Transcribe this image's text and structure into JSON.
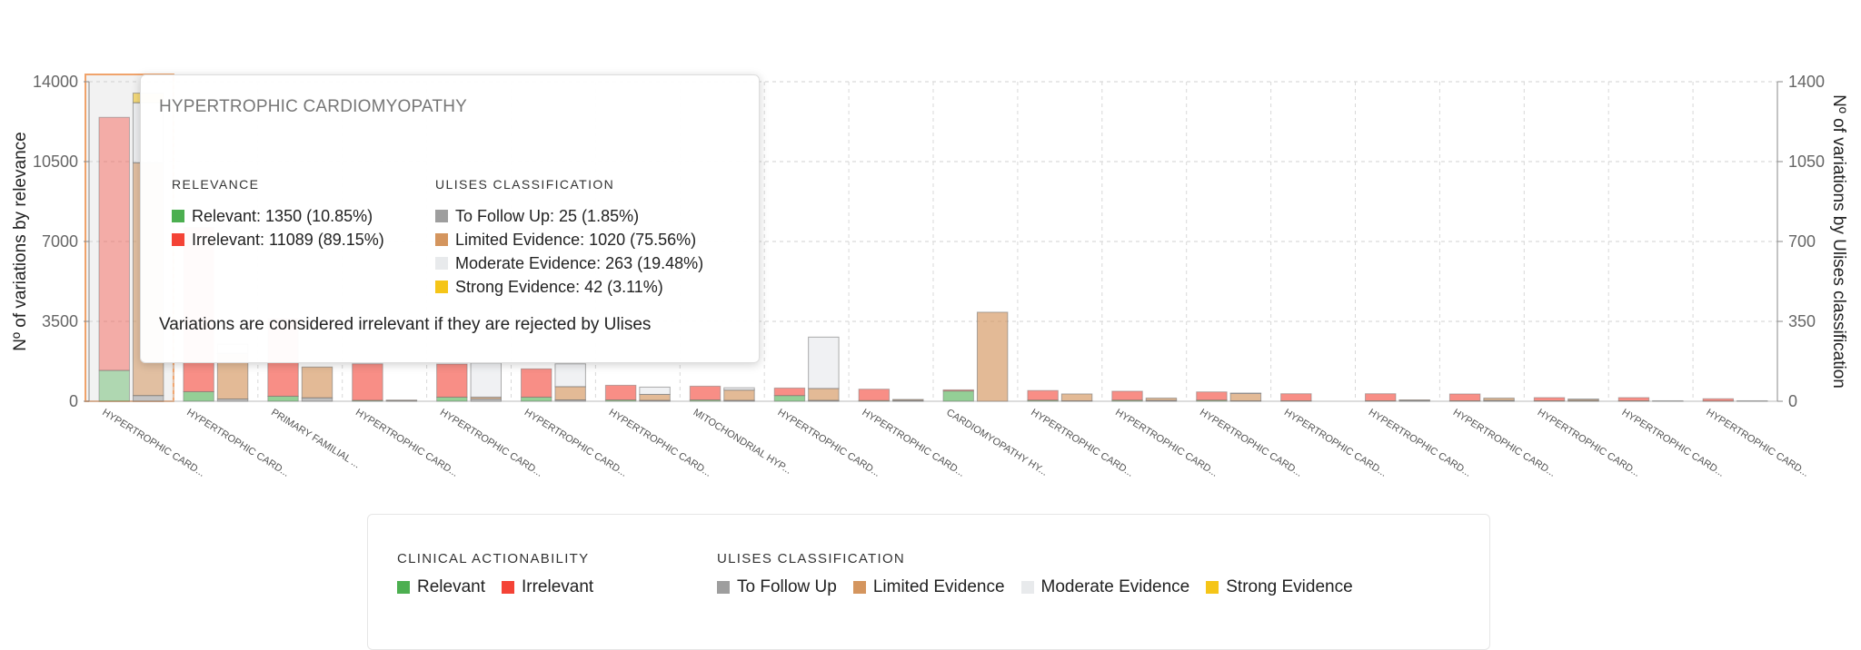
{
  "chart_data": {
    "type": "bar",
    "categories": [
      "HYPERTROPHIC CARD...",
      "HYPERTROPHIC CARD...",
      "PRIMARY FAMILIAL ...",
      "HYPERTROPHIC CARD...",
      "HYPERTROPHIC CARD...",
      "HYPERTROPHIC CARD...",
      "HYPERTROPHIC CARD...",
      "MITOCHONDRIAL HYP...",
      "HYPERTROPHIC CARD...",
      "HYPERTROPHIC CARD...",
      "CARDIOMYOPATHY HY...",
      "HYPERTROPHIC CARD...",
      "HYPERTROPHIC CARD...",
      "HYPERTROPHIC CARD...",
      "HYPERTROPHIC CARD...",
      "HYPERTROPHIC CARD...",
      "HYPERTROPHIC CARD...",
      "HYPERTROPHIC CARD...",
      "HYPERTROPHIC CARD...",
      "HYPERTROPHIC CARD..."
    ],
    "relevance_series": [
      {
        "name": "Relevant",
        "color": "#4caf50",
        "values": [
          1350,
          420,
          220,
          40,
          180,
          180,
          60,
          60,
          250,
          30,
          450,
          50,
          50,
          50,
          20,
          20,
          20,
          20,
          20,
          10
        ]
      },
      {
        "name": "Irrelevant",
        "color": "#f44336",
        "values": [
          11089,
          7200,
          3400,
          1600,
          1450,
          1240,
          640,
          600,
          330,
          500,
          50,
          420,
          390,
          360,
          310,
          310,
          300,
          140,
          140,
          100
        ]
      }
    ],
    "ulises_series": [
      {
        "name": "To Follow Up",
        "color": "#9e9e9e",
        "values": [
          25,
          10,
          15,
          3,
          10,
          6,
          4,
          4,
          4,
          4,
          0,
          2,
          4,
          2,
          0,
          4,
          4,
          2,
          2,
          2
        ]
      },
      {
        "name": "Limited Evidence",
        "color": "#d4955e",
        "values": [
          1020,
          200,
          135,
          2,
          8,
          58,
          26,
          45,
          52,
          4,
          390,
          30,
          10,
          32,
          0,
          2,
          10,
          6,
          0,
          0
        ]
      },
      {
        "name": "Moderate Evidence",
        "color": "#e8eaec",
        "values": [
          263,
          40,
          0,
          0,
          150,
          100,
          32,
          10,
          225,
          0,
          0,
          0,
          0,
          2,
          0,
          0,
          0,
          2,
          0,
          0
        ]
      },
      {
        "name": "Strong Evidence",
        "color": "#f5c518",
        "values": [
          42,
          0,
          0,
          0,
          0,
          0,
          0,
          0,
          0,
          0,
          0,
          0,
          0,
          0,
          0,
          0,
          0,
          0,
          0,
          0
        ]
      }
    ],
    "y_left": {
      "label": "Nº of variations by relevance",
      "ticks": [
        "0",
        "3500",
        "7000",
        "10500",
        "14000"
      ],
      "lim": [
        0,
        14000
      ]
    },
    "y_right": {
      "label": "Nº of variations by Ulises classification",
      "ticks": [
        "0",
        "350",
        "700",
        "1050",
        "1400"
      ],
      "lim": [
        0,
        1400
      ]
    },
    "grid": true,
    "highlighted_index": 0
  },
  "tooltip": {
    "title": "HYPERTROPHIC CARDIOMYOPATHY",
    "relevance_heading": "RELEVANCE",
    "relevance_rows": [
      {
        "text": "Relevant: 1350 (10.85%)",
        "color": "#4caf50"
      },
      {
        "text": "Irrelevant: 11089 (89.15%)",
        "color": "#f44336"
      }
    ],
    "ulises_heading": "ULISES CLASSIFICATION",
    "ulises_rows": [
      {
        "text": "To Follow Up: 25 (1.85%)",
        "color": "#9e9e9e"
      },
      {
        "text": "Limited Evidence: 1020 (75.56%)",
        "color": "#d4955e"
      },
      {
        "text": "Moderate Evidence: 263 (19.48%)",
        "color": "#e8eaec"
      },
      {
        "text": "Strong Evidence: 42 (3.11%)",
        "color": "#f5c518"
      }
    ],
    "note": "Variations are considered irrelevant if they are rejected by Ulises"
  },
  "legend": {
    "clinical_heading": "CLINICAL ACTIONABILITY",
    "clinical_items": [
      {
        "label": "Relevant",
        "color": "#4caf50"
      },
      {
        "label": "Irrelevant",
        "color": "#f44336"
      }
    ],
    "ulises_heading": "ULISES CLASSIFICATION",
    "ulises_items": [
      {
        "label": "To Follow Up",
        "color": "#9e9e9e"
      },
      {
        "label": "Limited Evidence",
        "color": "#d4955e"
      },
      {
        "label": "Moderate Evidence",
        "color": "#e8eaec"
      },
      {
        "label": "Strong Evidence",
        "color": "#f5c518"
      }
    ]
  }
}
